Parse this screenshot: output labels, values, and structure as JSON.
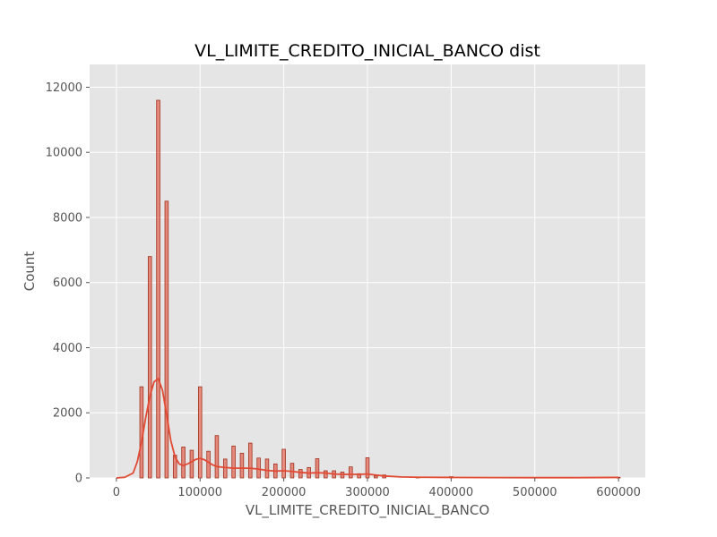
{
  "chart_data": {
    "type": "bar",
    "title": "VL_LIMITE_CREDITO_INICIAL_BANCO dist",
    "xlabel": "VL_LIMITE_CREDITO_INICIAL_BANCO",
    "ylabel": "Count",
    "xlim": [
      -32000,
      632000
    ],
    "ylim": [
      0,
      12700
    ],
    "xticks": [
      0,
      100000,
      200000,
      300000,
      400000,
      500000,
      600000
    ],
    "yticks": [
      0,
      2000,
      4000,
      6000,
      8000,
      10000,
      12000
    ],
    "grid": true,
    "bin_width": 4000,
    "bins": [
      {
        "x": 30000,
        "count": 2800
      },
      {
        "x": 40000,
        "count": 6800
      },
      {
        "x": 50000,
        "count": 11600
      },
      {
        "x": 60000,
        "count": 8500
      },
      {
        "x": 70000,
        "count": 700
      },
      {
        "x": 80000,
        "count": 950
      },
      {
        "x": 90000,
        "count": 850
      },
      {
        "x": 100000,
        "count": 2800
      },
      {
        "x": 110000,
        "count": 820
      },
      {
        "x": 120000,
        "count": 1300
      },
      {
        "x": 130000,
        "count": 580
      },
      {
        "x": 140000,
        "count": 980
      },
      {
        "x": 150000,
        "count": 760
      },
      {
        "x": 160000,
        "count": 1070
      },
      {
        "x": 170000,
        "count": 610
      },
      {
        "x": 180000,
        "count": 580
      },
      {
        "x": 190000,
        "count": 430
      },
      {
        "x": 200000,
        "count": 880
      },
      {
        "x": 210000,
        "count": 450
      },
      {
        "x": 220000,
        "count": 260
      },
      {
        "x": 230000,
        "count": 320
      },
      {
        "x": 240000,
        "count": 590
      },
      {
        "x": 250000,
        "count": 220
      },
      {
        "x": 260000,
        "count": 220
      },
      {
        "x": 270000,
        "count": 180
      },
      {
        "x": 280000,
        "count": 340
      },
      {
        "x": 290000,
        "count": 130
      },
      {
        "x": 300000,
        "count": 620
      },
      {
        "x": 310000,
        "count": 60
      },
      {
        "x": 320000,
        "count": 90
      },
      {
        "x": 360000,
        "count": 30
      },
      {
        "x": 400000,
        "count": 40
      },
      {
        "x": 600000,
        "count": 20
      }
    ],
    "kde": {
      "x": [
        0,
        10000,
        20000,
        25000,
        30000,
        35000,
        40000,
        45000,
        50000,
        55000,
        60000,
        65000,
        70000,
        75000,
        80000,
        85000,
        90000,
        95000,
        100000,
        105000,
        110000,
        115000,
        120000,
        130000,
        140000,
        150000,
        160000,
        170000,
        180000,
        190000,
        200000,
        210000,
        220000,
        230000,
        240000,
        250000,
        260000,
        270000,
        280000,
        290000,
        300000,
        310000,
        320000,
        340000,
        360000,
        400000,
        450000,
        500000,
        550000,
        600000
      ],
      "y": [
        0,
        20,
        150,
        500,
        1100,
        1850,
        2500,
        2950,
        3050,
        2700,
        1950,
        1150,
        650,
        430,
        380,
        430,
        500,
        570,
        600,
        560,
        480,
        400,
        350,
        320,
        300,
        300,
        300,
        270,
        230,
        210,
        220,
        200,
        170,
        150,
        160,
        150,
        120,
        110,
        110,
        110,
        120,
        90,
        60,
        30,
        20,
        15,
        10,
        8,
        8,
        15
      ]
    },
    "colors": {
      "bar_fill": "#E24A33",
      "bar_edge": "#A0321F",
      "kde_line": "#E24A33",
      "plot_background": "#E5E5E5",
      "grid": "#FFFFFF"
    }
  }
}
